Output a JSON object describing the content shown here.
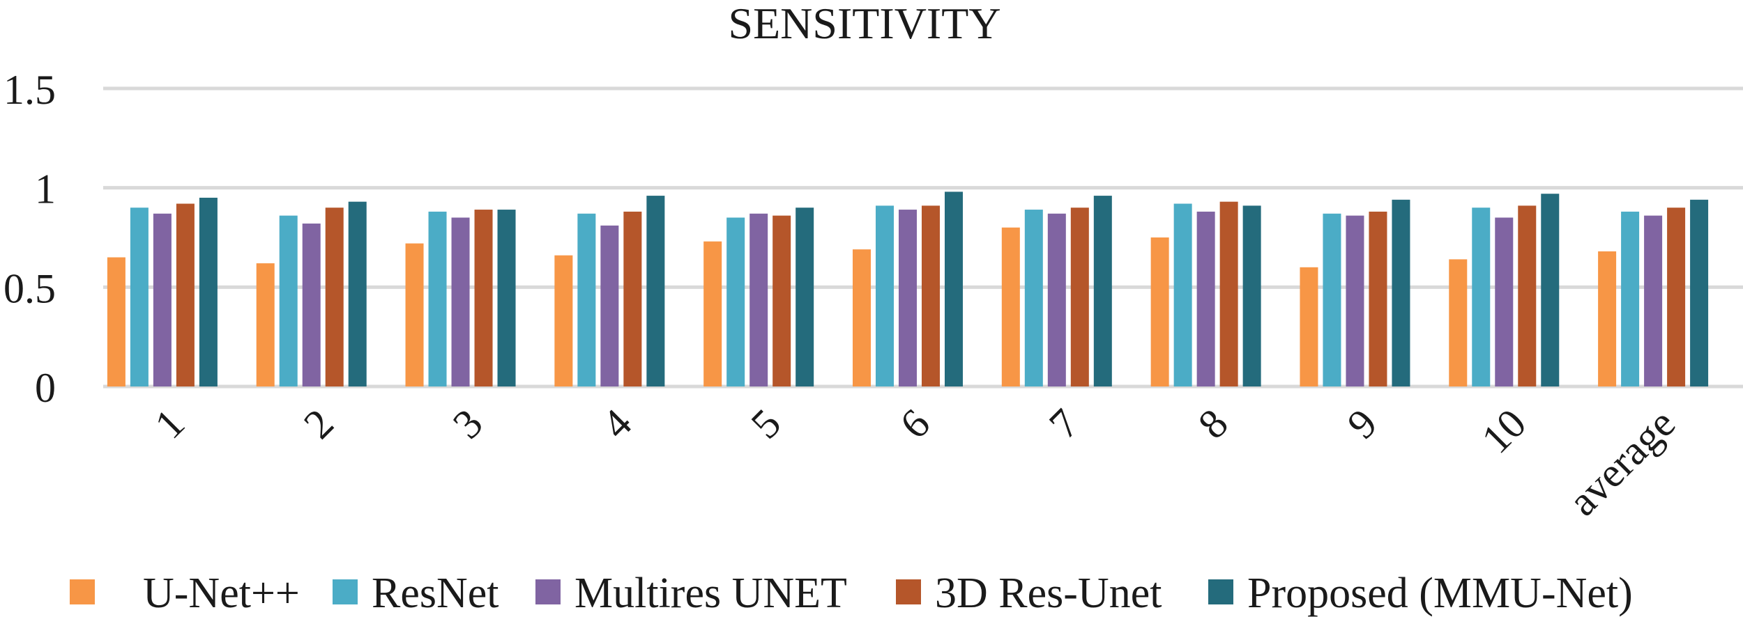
{
  "chart_data": {
    "type": "bar",
    "title": "SENSITIVITY",
    "xlabel": "",
    "ylabel": "",
    "categories": [
      "1",
      "2",
      "3",
      "4",
      "5",
      "6",
      "7",
      "8",
      "9",
      "10",
      "average"
    ],
    "y_ticks": [
      "0",
      "0.5",
      "1",
      "1.5"
    ],
    "ylim": [
      0,
      1.5
    ],
    "grid": true,
    "legend_position": "bottom",
    "series": [
      {
        "name": "U-Net++",
        "color": "#f79646",
        "values": [
          0.65,
          0.62,
          0.72,
          0.66,
          0.73,
          0.69,
          0.8,
          0.75,
          0.6,
          0.64,
          0.68
        ]
      },
      {
        "name": "ResNet",
        "color": "#4bacc6",
        "values": [
          0.9,
          0.86,
          0.88,
          0.87,
          0.85,
          0.91,
          0.89,
          0.92,
          0.87,
          0.9,
          0.88
        ]
      },
      {
        "name": "Multires UNET",
        "color": "#8064a2",
        "values": [
          0.87,
          0.82,
          0.85,
          0.81,
          0.87,
          0.89,
          0.87,
          0.88,
          0.86,
          0.85,
          0.86
        ]
      },
      {
        "name": "3D Res-Unet",
        "color": "#b5562a",
        "values": [
          0.92,
          0.9,
          0.89,
          0.88,
          0.86,
          0.91,
          0.9,
          0.93,
          0.88,
          0.91,
          0.9
        ]
      },
      {
        "name": "Proposed (MMU-Net)",
        "color": "#246b7c",
        "values": [
          0.95,
          0.93,
          0.89,
          0.96,
          0.9,
          0.98,
          0.96,
          0.91,
          0.94,
          0.97,
          0.94
        ]
      }
    ]
  }
}
